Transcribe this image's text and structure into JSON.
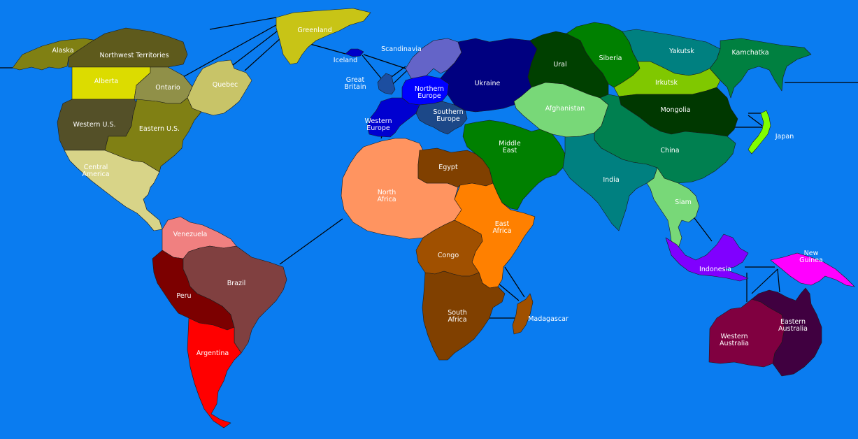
{
  "map": {
    "ocean_color": "#0a7cf0",
    "territories": [
      {
        "id": "alaska",
        "label": "Alaska",
        "color": "#808013"
      },
      {
        "id": "northwest-territories",
        "label": "Northwest Territories",
        "color": "#5e5a1c"
      },
      {
        "id": "greenland",
        "label": "Greenland",
        "color": "#c8c416"
      },
      {
        "id": "alberta",
        "label": "Alberta",
        "color": "#dcdc00"
      },
      {
        "id": "ontario",
        "label": "Ontario",
        "color": "#909048"
      },
      {
        "id": "quebec",
        "label": "Quebec",
        "color": "#c8c468"
      },
      {
        "id": "western-us",
        "label": "Western U.S.",
        "color": "#545028"
      },
      {
        "id": "eastern-us",
        "label": "Eastern U.S.",
        "color": "#808014"
      },
      {
        "id": "central-america",
        "label": [
          "Central",
          "America"
        ],
        "color": "#d8d488"
      },
      {
        "id": "venezuela",
        "label": "Venezuela",
        "color": "#f08080"
      },
      {
        "id": "peru",
        "label": "Peru",
        "color": "#7c0000"
      },
      {
        "id": "brazil",
        "label": "Brazil",
        "color": "#804040"
      },
      {
        "id": "argentina",
        "label": "Argentina",
        "color": "#ff0000"
      },
      {
        "id": "iceland",
        "label": "Iceland",
        "color": "#0000c8"
      },
      {
        "id": "scandinavia",
        "label": "Scandinavia",
        "color": "#6464c8"
      },
      {
        "id": "great-britain",
        "label": [
          "Great",
          "Britain"
        ],
        "color": "#1c4ea0"
      },
      {
        "id": "northern-europe",
        "label": [
          "Northern",
          "Europe"
        ],
        "color": "#0000ff"
      },
      {
        "id": "ukraine",
        "label": "Ukraine",
        "color": "#000080"
      },
      {
        "id": "western-europe",
        "label": [
          "Western",
          "Europe"
        ],
        "color": "#0000d0"
      },
      {
        "id": "southern-europe",
        "label": [
          "Southern",
          "Europe"
        ],
        "color": "#1c4888"
      },
      {
        "id": "north-africa",
        "label": [
          "North",
          "Africa"
        ],
        "color": "#ff9460"
      },
      {
        "id": "egypt",
        "label": "Egypt",
        "color": "#804000"
      },
      {
        "id": "east-africa",
        "label": [
          "East",
          "Africa"
        ],
        "color": "#ff8000"
      },
      {
        "id": "congo",
        "label": "Congo",
        "color": "#a05000"
      },
      {
        "id": "south-africa",
        "label": [
          "South",
          "Africa"
        ],
        "color": "#804000"
      },
      {
        "id": "madagascar",
        "label": "Madagascar",
        "color": "#a05000"
      },
      {
        "id": "ural",
        "label": "Ural",
        "color": "#004000"
      },
      {
        "id": "siberia",
        "label": "Siberia",
        "color": "#008000"
      },
      {
        "id": "yakutsk",
        "label": "Yakutsk",
        "color": "#008080"
      },
      {
        "id": "kamchatka",
        "label": "Kamchatka",
        "color": "#008040"
      },
      {
        "id": "irkutsk",
        "label": "Irkutsk",
        "color": "#80c800"
      },
      {
        "id": "mongolia",
        "label": "Mongolia",
        "color": "#003800"
      },
      {
        "id": "afghanistan",
        "label": "Afghanistan",
        "color": "#78d878"
      },
      {
        "id": "middle-east",
        "label": [
          "Middle",
          "East"
        ],
        "color": "#008000"
      },
      {
        "id": "china",
        "label": "China",
        "color": "#008050"
      },
      {
        "id": "india",
        "label": "India",
        "color": "#008080"
      },
      {
        "id": "japan",
        "label": "Japan",
        "color": "#80ff00"
      },
      {
        "id": "siam",
        "label": "Siam",
        "color": "#78d878"
      },
      {
        "id": "indonesia",
        "label": "Indonesia",
        "color": "#8000ff"
      },
      {
        "id": "new-guinea",
        "label": [
          "New",
          "Guinea"
        ],
        "color": "#ff00ff"
      },
      {
        "id": "western-australia",
        "label": [
          "Western",
          "Australia"
        ],
        "color": "#800040"
      },
      {
        "id": "eastern-australia",
        "label": [
          "Eastern",
          "Australia"
        ],
        "color": "#400040"
      }
    ]
  }
}
